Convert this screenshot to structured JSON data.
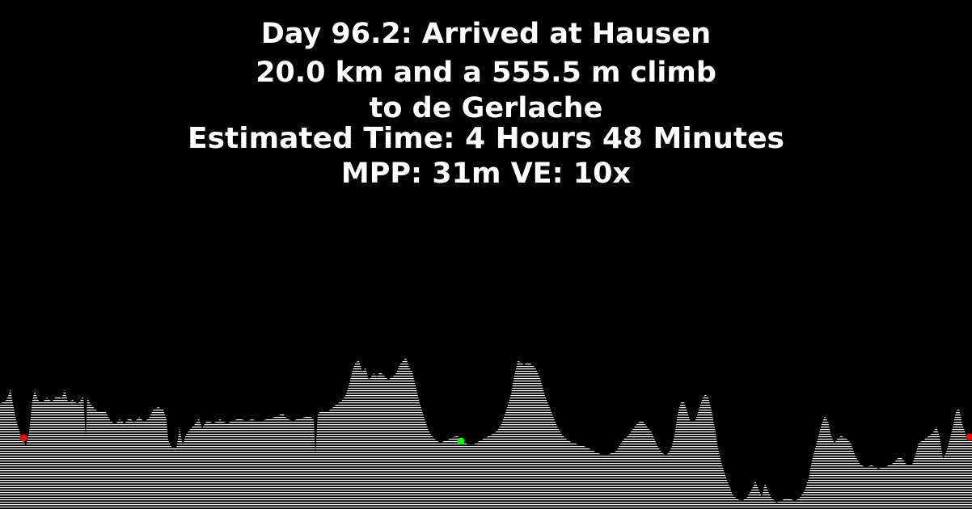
{
  "heading": {
    "line1": "Day 96.2: Arrived at Hausen",
    "line2": "20.0 km and a 555.5 m climb",
    "line3": "to de Gerlache",
    "line4": "Estimated Time: 4 Hours 48 Minutes",
    "line5": "MPP: 31m VE: 10x"
  },
  "colors": {
    "background": "#000000",
    "text": "#ffffff",
    "terrain": "#ffffff",
    "start_marker": "#ff0000",
    "current_marker": "#00ff00",
    "end_marker": "#ff0000"
  }
}
